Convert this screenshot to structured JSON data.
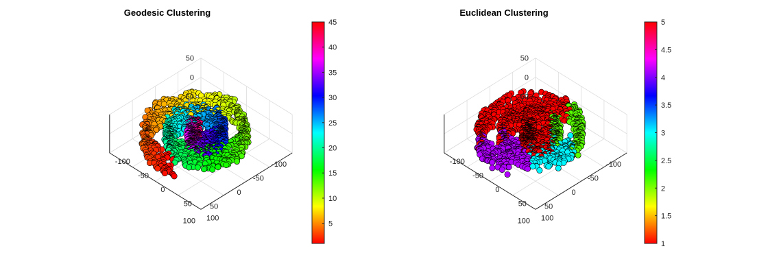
{
  "chart_data": [
    {
      "type": "scatter",
      "title": "Geodesic Clustering",
      "projection": "3d",
      "xlim": [
        -100,
        100
      ],
      "ylim": [
        -100,
        100
      ],
      "zlim": [
        -50,
        50
      ],
      "x_ticks": [
        "-100",
        "-50",
        "0",
        "50",
        "100"
      ],
      "y_ticks": [
        "-100",
        "-50",
        "0",
        "50",
        "100"
      ],
      "z_ticks": [
        "-50",
        "0",
        "50"
      ],
      "colorbar": {
        "colormap": "hsv",
        "range": [
          1,
          45
        ],
        "ticks": [
          "5",
          "10",
          "15",
          "20",
          "25",
          "30",
          "35",
          "40",
          "45"
        ]
      },
      "points": {
        "shape": "spiral",
        "turns": 2.4,
        "count": 1500,
        "marker": "circle",
        "edge_color": "#000000"
      }
    },
    {
      "type": "scatter",
      "title": "Euclidean Clustering",
      "projection": "3d",
      "xlim": [
        -100,
        100
      ],
      "ylim": [
        -100,
        100
      ],
      "zlim": [
        -50,
        50
      ],
      "x_ticks": [
        "-100",
        "-50",
        "0",
        "50",
        "100"
      ],
      "y_ticks": [
        "-100",
        "-50",
        "0",
        "50",
        "100"
      ],
      "z_ticks": [
        "-50",
        "0",
        "50"
      ],
      "colorbar": {
        "colormap": "hsv",
        "range": [
          1,
          5
        ],
        "ticks": [
          "1",
          "1.5",
          "2",
          "2.5",
          "3",
          "3.5",
          "4",
          "4.5",
          "5"
        ]
      },
      "points": {
        "shape": "spiral",
        "turns": 2.4,
        "count": 1500,
        "marker": "circle",
        "edge_color": "#000000"
      }
    }
  ]
}
